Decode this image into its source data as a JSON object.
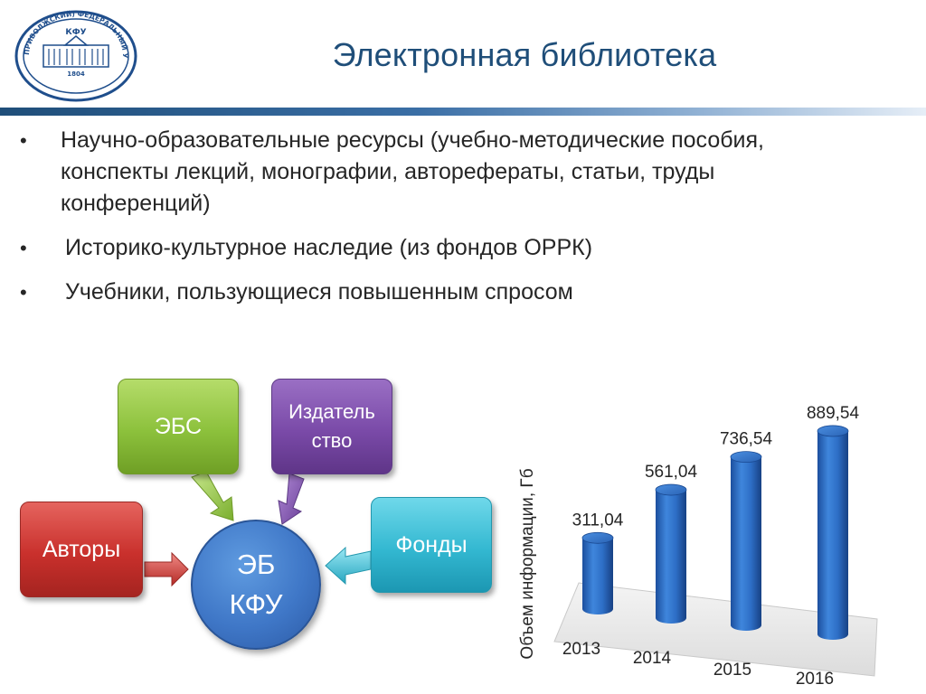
{
  "header": {
    "title": "Электронная библиотека",
    "logo": {
      "ring_text": "КАЗАНСКИЙ (ПРИВОЛЖСКИЙ) ФЕДЕРАЛЬНЫЙ УНИВЕРСИТЕТ",
      "center_text": "КФУ",
      "year": "1804"
    }
  },
  "bullets": [
    {
      "marker": "•",
      "text": "Научно-образовательные ресурсы (учебно-методические пособия, конспекты лекций, монографии, авторефераты, статьи, труды конференций)"
    },
    {
      "marker": "•",
      "text": "Историко-культурное наследие (из фондов ОРРК)"
    },
    {
      "marker": "•",
      "text": "Учебники, пользующиеся повышенным спросом"
    }
  ],
  "diagram": {
    "ebs": "ЭБС",
    "publisher": "Издатель ство",
    "authors": "Авторы",
    "funds": "Фонды",
    "center_line1": "ЭБ",
    "center_line2": "КФУ",
    "colors": {
      "green": "#8cc13c",
      "purple": "#7a4aa8",
      "red": "#c9302c",
      "cyan": "#33b8d1",
      "blue": "#3f77c7"
    }
  },
  "chart_data": {
    "type": "bar",
    "categories": [
      "2013",
      "2014",
      "2015",
      "2016"
    ],
    "values": [
      311.04,
      561.04,
      736.54,
      889.54
    ],
    "value_labels": [
      "311,04",
      "561,04",
      "736,54",
      "889,54"
    ],
    "ylabel": "Объем информации, Гб",
    "xlabel": "",
    "ylim": [
      0,
      1000
    ],
    "style": "3d-cylinder",
    "bar_color": "#2e6fc7",
    "grid": false,
    "legend": "none"
  }
}
